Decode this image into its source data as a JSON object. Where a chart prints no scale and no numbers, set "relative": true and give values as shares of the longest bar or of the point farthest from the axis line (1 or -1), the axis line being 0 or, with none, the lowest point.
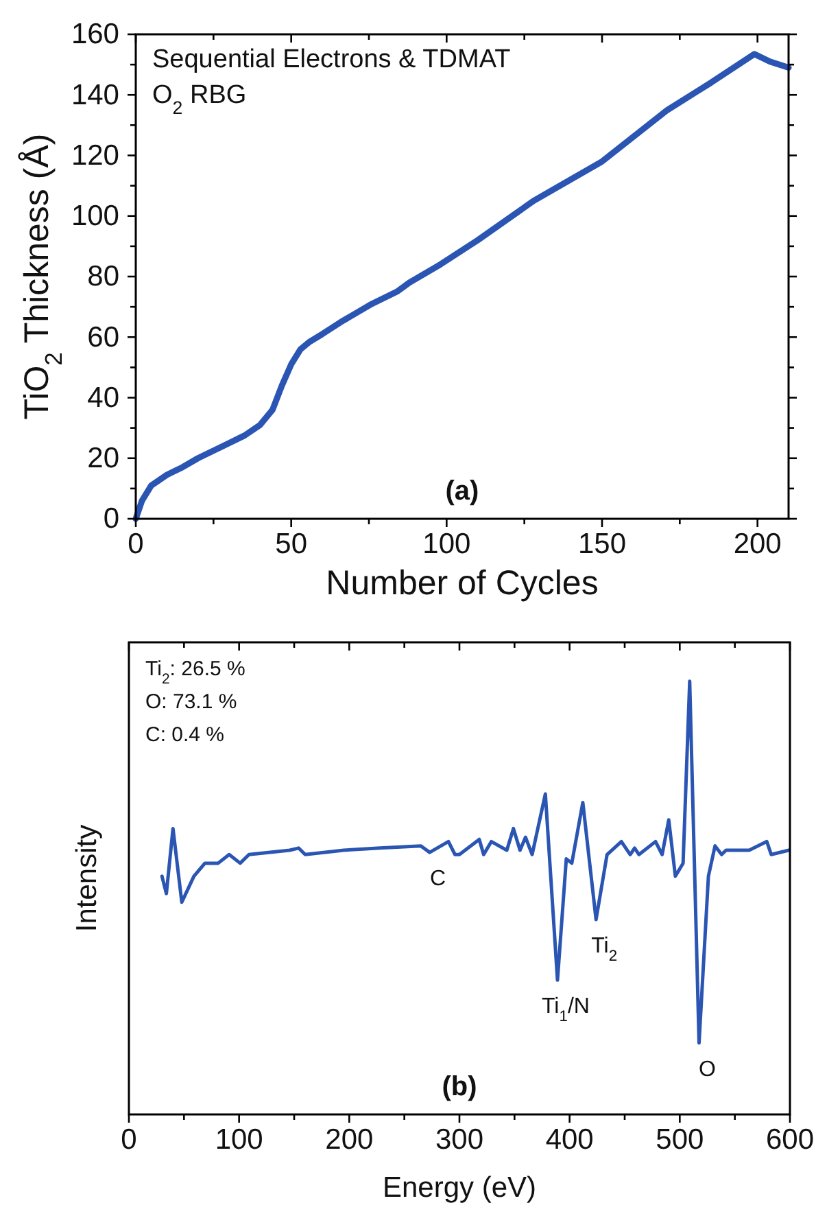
{
  "chart_data": [
    {
      "type": "line",
      "xlabel": "Number of Cycles",
      "ylabel": "TiO$_{2}$ Thickness (Å)",
      "annotations": [
        "Sequential Electrons & TDMAT",
        "O$_{2}$ RBG",
        "(a)"
      ],
      "xlim": [
        0,
        210
      ],
      "xticks": [
        0,
        {
          "value": 25,
          "label": null
        },
        50,
        {
          "value": 75,
          "label": null
        },
        100,
        {
          "value": 125,
          "label": null
        },
        150,
        {
          "value": 175,
          "label": null
        },
        200
      ],
      "ylim": [
        0,
        160
      ],
      "yticks": [
        0,
        {
          "value": 10,
          "label": null
        },
        20,
        {
          "value": 30,
          "label": null
        },
        40,
        {
          "value": 50,
          "label": null
        },
        60,
        {
          "value": 70,
          "label": null
        },
        80,
        {
          "value": 90,
          "label": null
        },
        100,
        {
          "value": 110,
          "label": null
        },
        120,
        {
          "value": 130,
          "label": null
        },
        140,
        {
          "value": 150,
          "label": null
        },
        160
      ],
      "grid": false,
      "series": [
        {
          "color": "#2b55b3",
          "x": [
            0,
            2,
            5,
            10,
            15,
            20,
            25,
            30,
            35,
            40,
            44,
            47,
            50,
            53,
            56,
            60,
            66,
            76,
            84,
            88,
            98,
            110,
            128,
            150,
            171,
            185,
            199,
            204,
            210
          ],
          "values": [
            0,
            6,
            11,
            14.5,
            17,
            20,
            22.5,
            25,
            27.5,
            31,
            36,
            44,
            51,
            56,
            58.5,
            61,
            65,
            71,
            75,
            78,
            84,
            92,
            105,
            118,
            135,
            144,
            153.5,
            151,
            149
          ]
        }
      ]
    },
    {
      "type": "line",
      "xlabel": "Energy (eV)",
      "ylabel": "Intensity",
      "relative": true,
      "annotations": [
        "Ti$_{2}$: 26.5 %",
        "O: 73.1 %",
        "C: 0.4 %",
        "(b)",
        {
          "text": "C",
          "x": 273,
          "y": 0.605
        },
        {
          "text": "Ti$_{1}$/N",
          "x": 389,
          "y": 0.31
        },
        {
          "text": "Ti$_{2}$",
          "x": 424,
          "y": 0.45
        },
        {
          "text": "O",
          "x": 517.5,
          "y": 0.165
        }
      ],
      "xlim": [
        0,
        600
      ],
      "xticks": [
        0,
        {
          "value": 50,
          "label": null
        },
        100,
        {
          "value": 150,
          "label": null
        },
        200,
        {
          "value": 250,
          "label": null
        },
        300,
        {
          "value": 350,
          "label": null
        },
        400,
        {
          "value": 450,
          "label": null
        },
        500,
        {
          "value": 550,
          "label": null
        },
        600
      ],
      "grid": false,
      "series": [
        {
          "color": "#2b55b3",
          "x": [
            30,
            34,
            40,
            48,
            59,
            69,
            81,
            91,
            101,
            109,
            146,
            154,
            160,
            195,
            228,
            265,
            273,
            290,
            296,
            300,
            318,
            322,
            329,
            343,
            349,
            355,
            360,
            366,
            378,
            389,
            397,
            402,
            412,
            424,
            434,
            447,
            455,
            459,
            463,
            478,
            484,
            490,
            496,
            503,
            509,
            517.5,
            526,
            532,
            538,
            542,
            563,
            579,
            583,
            599
          ],
          "values": [
            0.55,
            0.51,
            0.66,
            0.49,
            0.55,
            0.58,
            0.58,
            0.6,
            0.58,
            0.6,
            0.61,
            0.615,
            0.6,
            0.61,
            0.615,
            0.62,
            0.605,
            0.63,
            0.6,
            0.6,
            0.635,
            0.6,
            0.63,
            0.61,
            0.66,
            0.61,
            0.64,
            0.6,
            0.74,
            0.31,
            0.59,
            0.58,
            0.72,
            0.45,
            0.6,
            0.63,
            0.6,
            0.615,
            0.6,
            0.63,
            0.6,
            0.68,
            0.55,
            0.58,
            1.0,
            0.165,
            0.55,
            0.62,
            0.6,
            0.61,
            0.61,
            0.63,
            0.6,
            0.61
          ]
        }
      ]
    }
  ]
}
